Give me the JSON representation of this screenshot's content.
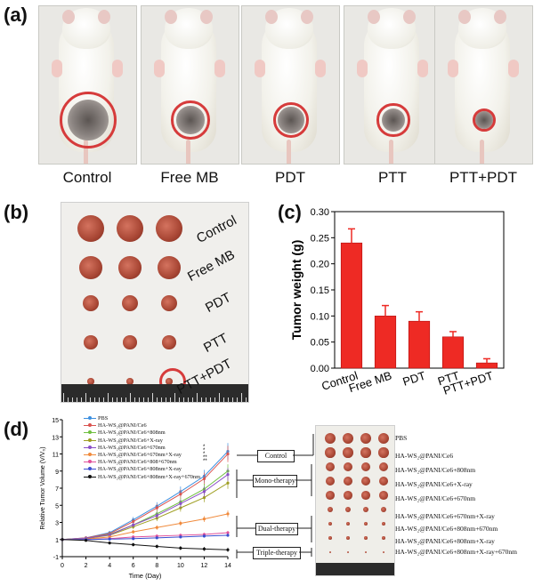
{
  "panel_labels": {
    "a": "(a)",
    "b": "(b)",
    "c": "(c)",
    "d": "(d)"
  },
  "panel_a": {
    "groups": [
      "Control",
      "Free MB",
      "PDT",
      "PTT",
      "PTT+PDT"
    ],
    "tumor_circle_sizes": [
      1.0,
      0.68,
      0.64,
      0.58,
      0.42
    ]
  },
  "panel_b": {
    "groups": [
      "Control",
      "Free MB",
      "PDT",
      "PTT",
      "PTT+PDT"
    ],
    "tumor_sizes": [
      1.0,
      0.85,
      0.62,
      0.52,
      0.25
    ]
  },
  "chart_data": [
    {
      "type": "bar",
      "panel": "c",
      "categories": [
        "Control",
        "Free MB",
        "PDT",
        "PTT",
        "PTT+PDT"
      ],
      "values": [
        0.24,
        0.1,
        0.09,
        0.06,
        0.01
      ],
      "errors": [
        0.027,
        0.02,
        0.018,
        0.01,
        0.008
      ],
      "ylabel": "Tumor weight (g)",
      "ylim": [
        0,
        0.3
      ],
      "yticks": [
        "0.00",
        "0.05",
        "0.10",
        "0.15",
        "0.20",
        "0.25",
        "0.30"
      ],
      "color": "#ee2a24"
    },
    {
      "type": "line",
      "panel": "d",
      "xlabel": "Time (Day)",
      "ylabel": "Relative Tumor Volume (V/V₀)",
      "x": [
        0,
        2,
        4,
        6,
        8,
        10,
        12,
        14
      ],
      "xticks": [
        "0",
        "2",
        "4",
        "6",
        "8",
        "10",
        "12",
        "14"
      ],
      "ylim": [
        -1,
        15
      ],
      "yticks": [
        "-1",
        "1",
        "3",
        "5",
        "7",
        "9",
        "11",
        "13",
        "15"
      ],
      "series": [
        {
          "name": "PBS",
          "color": "#3b8fe0",
          "values": [
            1.0,
            1.2,
            1.8,
            3.3,
            4.9,
            6.6,
            8.4,
            11.3
          ]
        },
        {
          "name": "HA-WS₂@PANI/Ce6",
          "color": "#d9534f",
          "values": [
            1.0,
            1.2,
            1.7,
            3.1,
            4.7,
            6.3,
            8.1,
            11.0
          ]
        },
        {
          "name": "HA-WS₂@PANI/Ce6+808nm",
          "color": "#6fbf3f",
          "values": [
            1.0,
            1.15,
            1.6,
            2.7,
            4.0,
            5.4,
            6.9,
            9.0
          ]
        },
        {
          "name": "HA-WS₂@PANI/Ce6+X-ray",
          "color": "#9e9e20",
          "values": [
            1.0,
            1.1,
            1.5,
            2.5,
            3.5,
            4.7,
            5.9,
            7.6
          ]
        },
        {
          "name": "HA-WS₂@PANI/Ce6+670nm",
          "color": "#8a4fc7",
          "values": [
            1.0,
            1.15,
            1.55,
            2.7,
            3.8,
            5.2,
            6.6,
            8.6
          ]
        },
        {
          "name": "HA-WS₂@PANI/Ce6+670nm+X-ray",
          "color": "#f08a3c",
          "values": [
            1.0,
            1.05,
            1.3,
            1.9,
            2.4,
            2.9,
            3.4,
            4.0
          ]
        },
        {
          "name": "HA-WS₂@PANI/Ce6+808+670nm",
          "color": "#e0509a",
          "values": [
            1.0,
            1.0,
            1.1,
            1.3,
            1.4,
            1.5,
            1.6,
            1.8
          ]
        },
        {
          "name": "HA-WS₂@PANI/Ce6+808nm+X-ray",
          "color": "#3a4fd0",
          "values": [
            1.0,
            1.0,
            1.05,
            1.1,
            1.2,
            1.3,
            1.4,
            1.5
          ]
        },
        {
          "name": "HA-WS₂@PANI/Ce6+808nm+X-ray+670nm",
          "color": "#111111",
          "values": [
            1.0,
            0.9,
            0.6,
            0.4,
            0.2,
            0.0,
            -0.1,
            -0.2
          ]
        }
      ],
      "significance_marks": [
        "*",
        "*",
        "*",
        "**",
        "**"
      ]
    }
  ],
  "panel_d_groups": [
    {
      "label": "Control"
    },
    {
      "label": "Mono-therapy"
    },
    {
      "label": "Dual-therapy"
    },
    {
      "label": "Triple-therapy"
    }
  ],
  "panel_d_photo_rows": [
    "PBS",
    "HA-WS₂@PANI/Ce6",
    "HA-WS₂@PANI/Ce6+808nm",
    "HA-WS₂@PANI/Ce6+X-ray",
    "HA-WS₂@PANI/Ce6+670nm",
    "HA-WS₂@PANI/Ce6+670nm+X-ray",
    "HA-WS₂@PANI/Ce6+808nm+670nm",
    "HA-WS₂@PANI/Ce6+808nm+X-ray",
    "HA-WS₂@PANI/Ce6+808nm+X-ray+670nm"
  ]
}
